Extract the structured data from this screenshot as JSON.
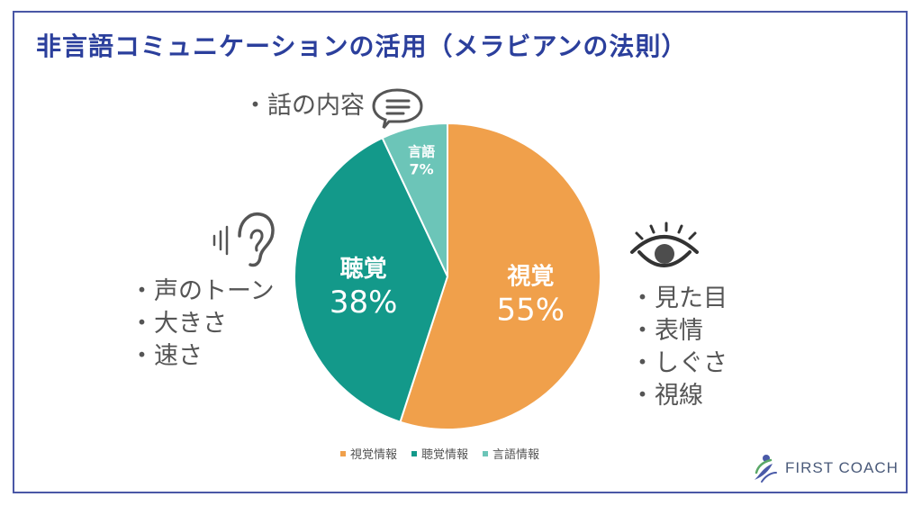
{
  "title": "非言語コミュニケーションの活用（メラビアンの法則）",
  "chart_data": {
    "type": "pie",
    "series": [
      {
        "name": "視覚情報",
        "label": "視覚",
        "percent_label": "55%",
        "value": 55,
        "color": "#f0a04b"
      },
      {
        "name": "聴覚情報",
        "label": "聴覚",
        "percent_label": "38%",
        "value": 38,
        "color": "#13998a"
      },
      {
        "name": "言語情報",
        "label": "言語",
        "percent_label": "7%",
        "value": 7,
        "color": "#6cc5b8"
      }
    ],
    "legend_position": "bottom"
  },
  "annotations": {
    "verbal": "・話の内容",
    "auditory": [
      "・声のトーン",
      "・大きさ",
      "・速さ"
    ],
    "visual": [
      "・見た目",
      "・表情",
      "・しぐさ",
      "・視線"
    ]
  },
  "icons": {
    "verbal": "speech-bubble-icon",
    "auditory": "ear-icon",
    "visual": "eye-icon",
    "brand": "leaf-person-logo-icon"
  },
  "brand": {
    "name": "FIRST COACH"
  }
}
